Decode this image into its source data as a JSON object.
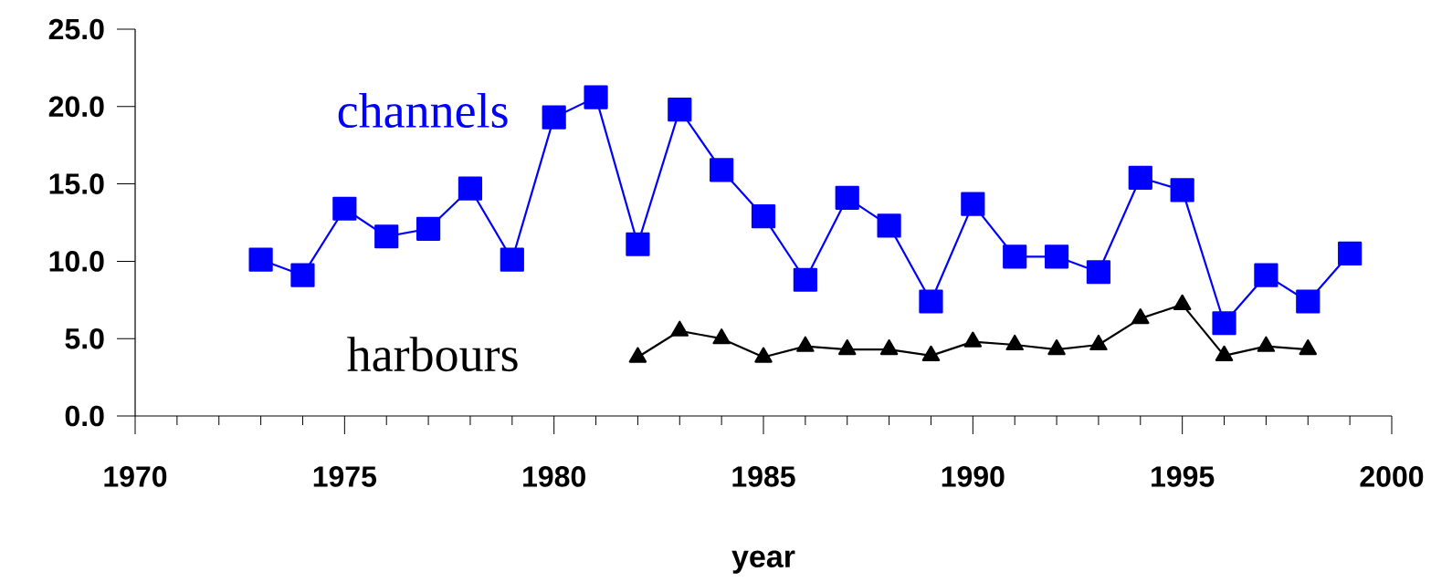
{
  "chart_data": {
    "type": "line",
    "xlabel": "year",
    "xlim": [
      1970,
      2000
    ],
    "xticks": [
      1970,
      1975,
      1980,
      1985,
      1990,
      1995,
      2000
    ],
    "ylim": [
      0,
      25
    ],
    "yticks": [
      {
        "value": 0,
        "label": "0.0"
      },
      {
        "value": 5,
        "label": "5.0"
      },
      {
        "value": 10,
        "label": "10.0"
      },
      {
        "value": 15,
        "label": "15.0"
      },
      {
        "value": 20,
        "label": "20.0"
      },
      {
        "value": 25,
        "label": "25.0"
      }
    ],
    "grid": false,
    "legend": false,
    "line_style": "solid",
    "series": [
      {
        "name": "channels",
        "color": "#0000ff",
        "marker": "square",
        "x": [
          1973,
          1974,
          1975,
          1976,
          1977,
          1978,
          1979,
          1980,
          1981,
          1982,
          1983,
          1984,
          1985,
          1986,
          1987,
          1988,
          1989,
          1990,
          1991,
          1992,
          1993,
          1994,
          1995,
          1996,
          1997,
          1998,
          1999
        ],
        "values": [
          10.1,
          9.1,
          13.4,
          11.6,
          12.1,
          14.7,
          10.1,
          19.3,
          20.6,
          11.1,
          19.8,
          15.9,
          12.9,
          8.8,
          14.1,
          12.3,
          7.4,
          13.7,
          10.3,
          10.3,
          9.3,
          15.4,
          14.6,
          6.0,
          9.1,
          7.4,
          10.5
        ]
      },
      {
        "name": "harbours",
        "color": "#000000",
        "marker": "triangle",
        "x": [
          1982,
          1983,
          1984,
          1985,
          1986,
          1987,
          1988,
          1989,
          1990,
          1991,
          1992,
          1993,
          1994,
          1995,
          1996,
          1997,
          1998
        ],
        "values": [
          3.8,
          5.5,
          5.0,
          3.8,
          4.5,
          4.3,
          4.3,
          3.9,
          4.8,
          4.6,
          4.3,
          4.6,
          6.3,
          7.2,
          3.9,
          4.5,
          4.3
        ]
      }
    ]
  }
}
